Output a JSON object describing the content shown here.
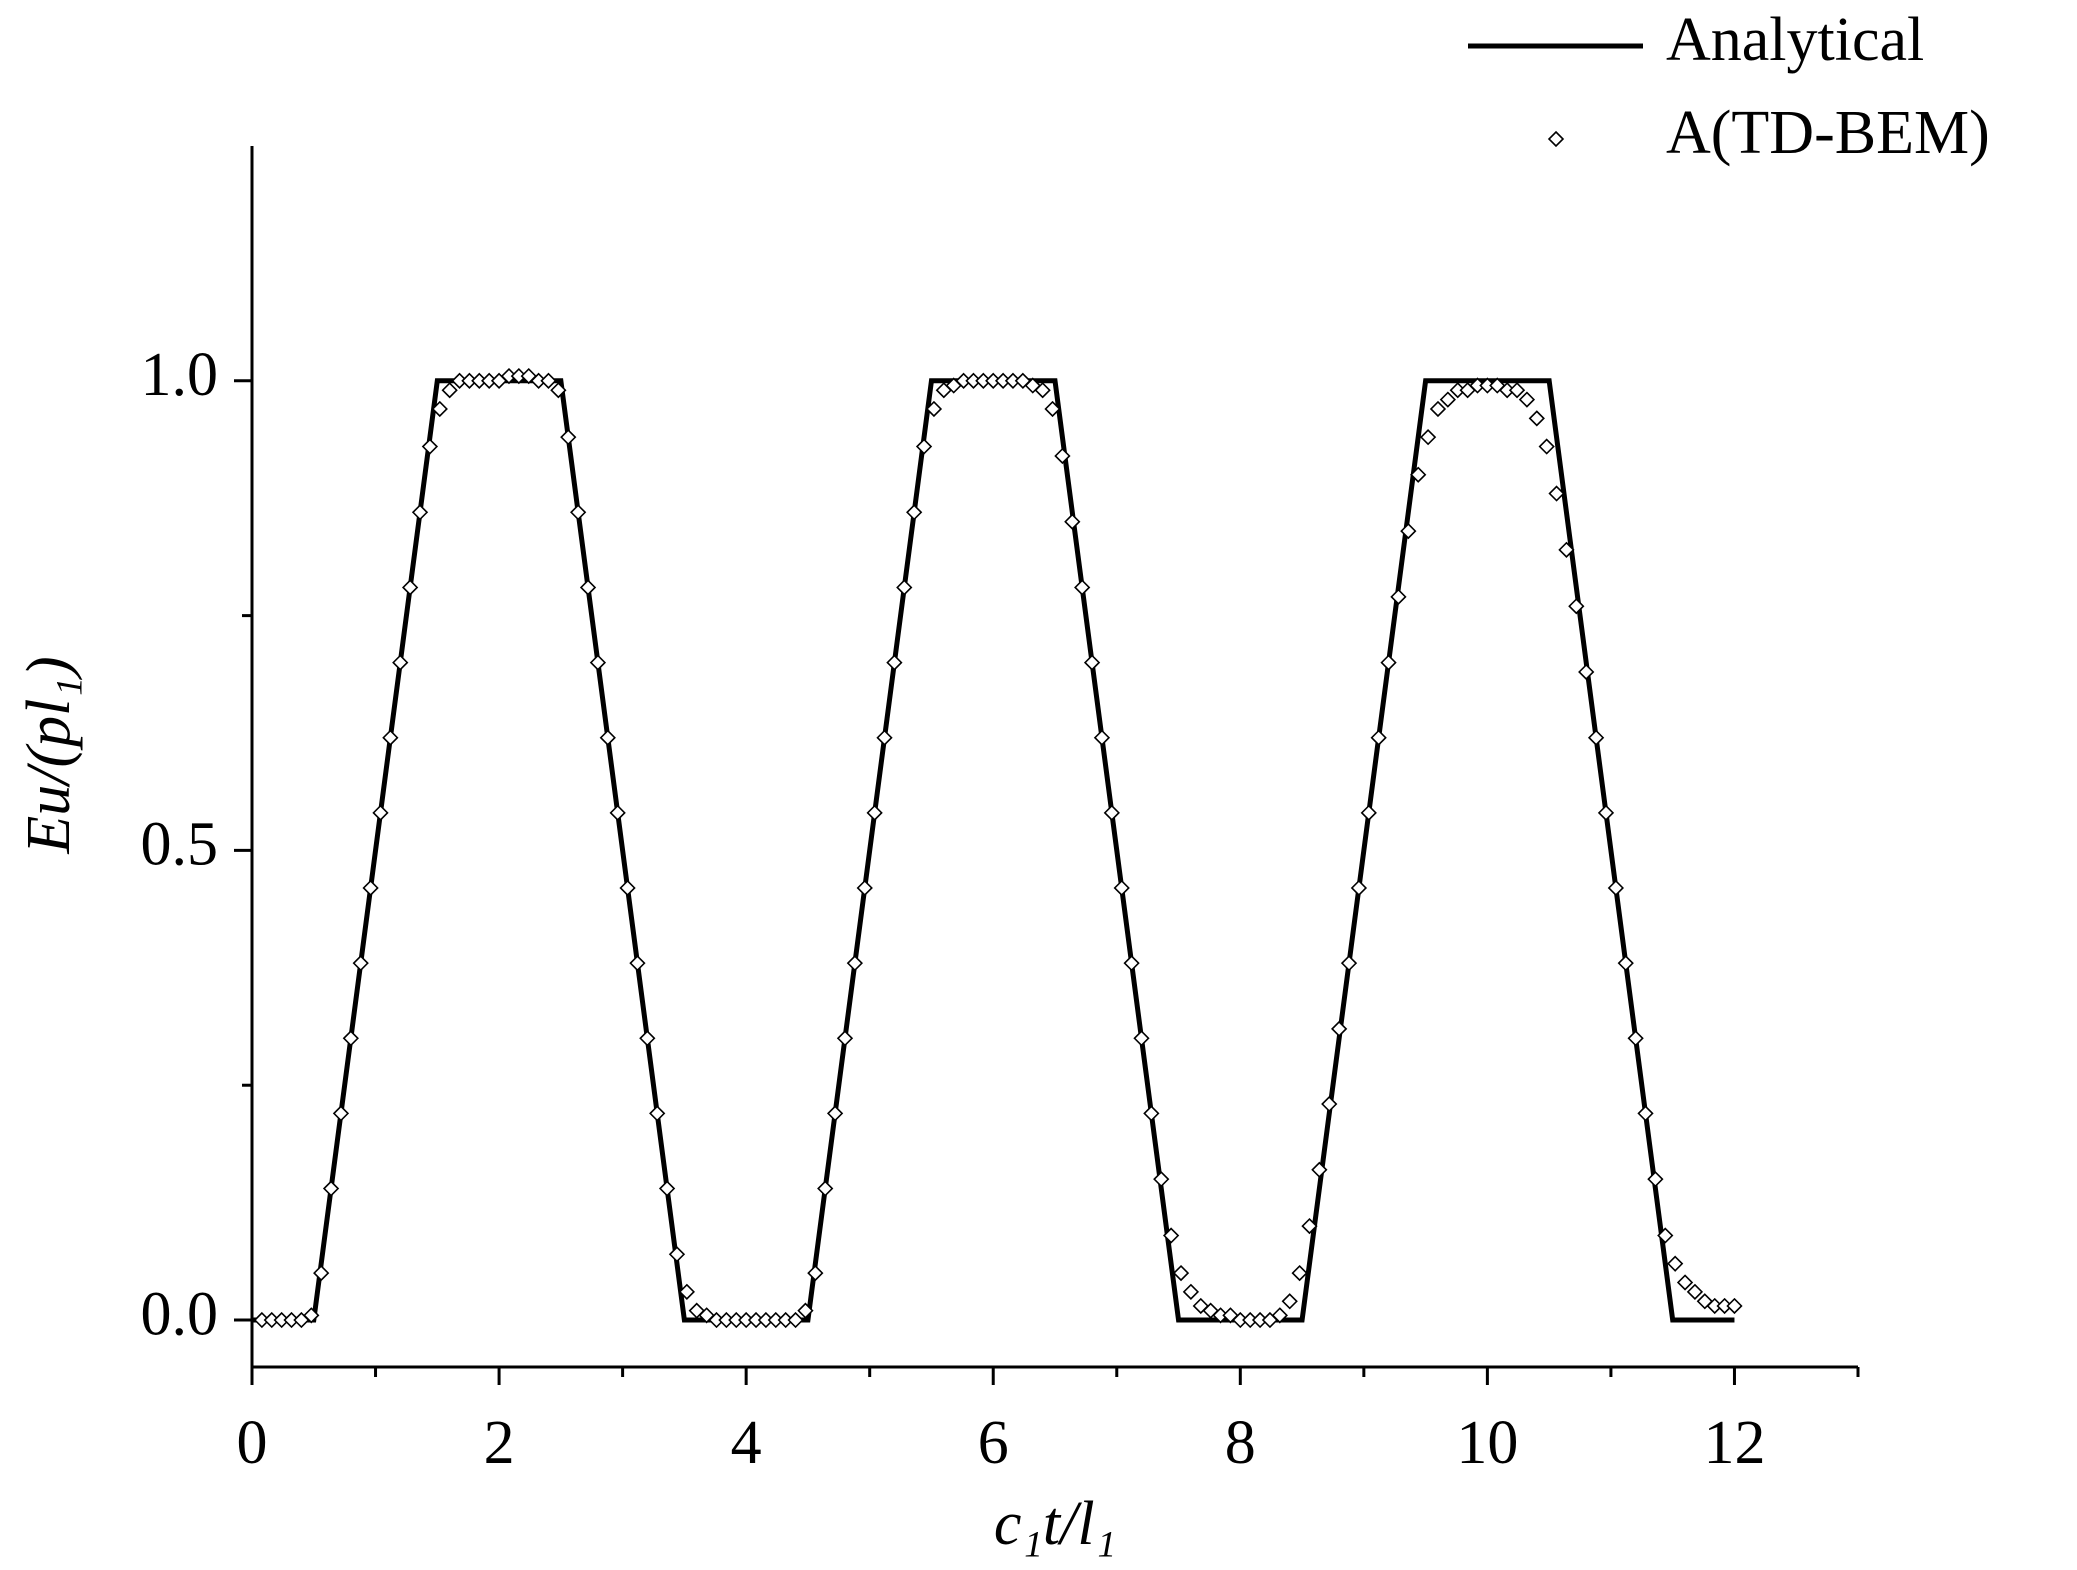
{
  "chart_data": {
    "type": "line",
    "xlabel": "c₁t/l₁",
    "ylabel": "Eu/(pl₁)",
    "xlim": [
      0,
      13
    ],
    "ylim": [
      -0.05,
      1.25
    ],
    "xticks": [
      0,
      2,
      4,
      6,
      8,
      10,
      12
    ],
    "xminorticks": [
      1,
      3,
      5,
      7,
      9,
      11,
      13
    ],
    "yticks": [
      {
        "value": 0,
        "label": "0.0"
      },
      {
        "value": 0.5,
        "label": "0.5"
      },
      {
        "value": 1,
        "label": "1.0"
      }
    ],
    "yminorticks": [
      0.25,
      0.75
    ],
    "grid": false,
    "legend": "top-right",
    "series": [
      {
        "name": "Analytical",
        "color": "#000000",
        "style": "line",
        "x": [
          0,
          0.5,
          1.5,
          2.5,
          3.5,
          4.5,
          5.5,
          6.5,
          7.5,
          8.5,
          9.5,
          10.5,
          11.5,
          12
        ],
        "values": [
          0,
          0,
          1,
          1,
          0,
          0,
          1,
          1,
          0,
          0,
          1,
          1,
          0,
          0
        ]
      },
      {
        "name": "A(TD-BEM)",
        "color": "#000000",
        "style": "diamond",
        "x": [
          0.08,
          0.16,
          0.24,
          0.32,
          0.4,
          0.48,
          0.56,
          0.64,
          0.72,
          0.8,
          0.88,
          0.96,
          1.04,
          1.12,
          1.2,
          1.28,
          1.36,
          1.44,
          1.52,
          1.6,
          1.68,
          1.76,
          1.84,
          1.92,
          2,
          2.08,
          2.16,
          2.24,
          2.32,
          2.4,
          2.48,
          2.56,
          2.64,
          2.72,
          2.8,
          2.88,
          2.96,
          3.04,
          3.12,
          3.2,
          3.28,
          3.36,
          3.44,
          3.52,
          3.6,
          3.68,
          3.76,
          3.84,
          3.92,
          4,
          4.08,
          4.16,
          4.24,
          4.32,
          4.4,
          4.48,
          4.56,
          4.64,
          4.72,
          4.8,
          4.88,
          4.96,
          5.04,
          5.12,
          5.2,
          5.28,
          5.36,
          5.44,
          5.52,
          5.6,
          5.68,
          5.76,
          5.84,
          5.92,
          6,
          6.08,
          6.16,
          6.24,
          6.32,
          6.4,
          6.48,
          6.56,
          6.64,
          6.72,
          6.8,
          6.88,
          6.96,
          7.04,
          7.12,
          7.2,
          7.28,
          7.36,
          7.44,
          7.52,
          7.6,
          7.68,
          7.76,
          7.84,
          7.92,
          8,
          8.08,
          8.16,
          8.24,
          8.32,
          8.4,
          8.48,
          8.56,
          8.64,
          8.72,
          8.8,
          8.88,
          8.96,
          9.04,
          9.12,
          9.2,
          9.28,
          9.36,
          9.44,
          9.52,
          9.6,
          9.68,
          9.76,
          9.84,
          9.92,
          10,
          10.08,
          10.16,
          10.24,
          10.32,
          10.4,
          10.48,
          10.56,
          10.64,
          10.72,
          10.8,
          10.88,
          10.96,
          11.04,
          11.12,
          11.2,
          11.28,
          11.36,
          11.44,
          11.52,
          11.6,
          11.68,
          11.76,
          11.84,
          11.92,
          12
        ],
        "values": [
          0,
          0,
          0,
          0,
          0,
          0.005,
          0.05,
          0.14,
          0.22,
          0.3,
          0.38,
          0.46,
          0.54,
          0.62,
          0.7,
          0.78,
          0.86,
          0.93,
          0.97,
          0.99,
          1,
          1,
          1,
          1,
          1,
          1.005,
          1.005,
          1.005,
          1,
          1,
          0.99,
          0.94,
          0.86,
          0.78,
          0.7,
          0.62,
          0.54,
          0.46,
          0.38,
          0.3,
          0.22,
          0.14,
          0.07,
          0.03,
          0.01,
          0.005,
          0,
          0,
          0,
          0,
          0,
          0,
          0,
          0,
          0,
          0.01,
          0.05,
          0.14,
          0.22,
          0.3,
          0.38,
          0.46,
          0.54,
          0.62,
          0.7,
          0.78,
          0.86,
          0.93,
          0.97,
          0.99,
          0.995,
          1,
          1,
          1,
          1,
          1,
          1,
          1,
          0.995,
          0.99,
          0.97,
          0.92,
          0.85,
          0.78,
          0.7,
          0.62,
          0.54,
          0.46,
          0.38,
          0.3,
          0.22,
          0.15,
          0.09,
          0.05,
          0.03,
          0.015,
          0.01,
          0.005,
          0.005,
          0,
          0,
          0,
          0,
          0.005,
          0.02,
          0.05,
          0.1,
          0.16,
          0.23,
          0.31,
          0.38,
          0.46,
          0.54,
          0.62,
          0.7,
          0.77,
          0.84,
          0.9,
          0.94,
          0.97,
          0.98,
          0.99,
          0.99,
          0.995,
          0.995,
          0.995,
          0.99,
          0.99,
          0.98,
          0.96,
          0.93,
          0.88,
          0.82,
          0.76,
          0.69,
          0.62,
          0.54,
          0.46,
          0.38,
          0.3,
          0.22,
          0.15,
          0.09,
          0.06,
          0.04,
          0.03,
          0.02,
          0.015,
          0.015,
          0.015
        ]
      }
    ]
  }
}
